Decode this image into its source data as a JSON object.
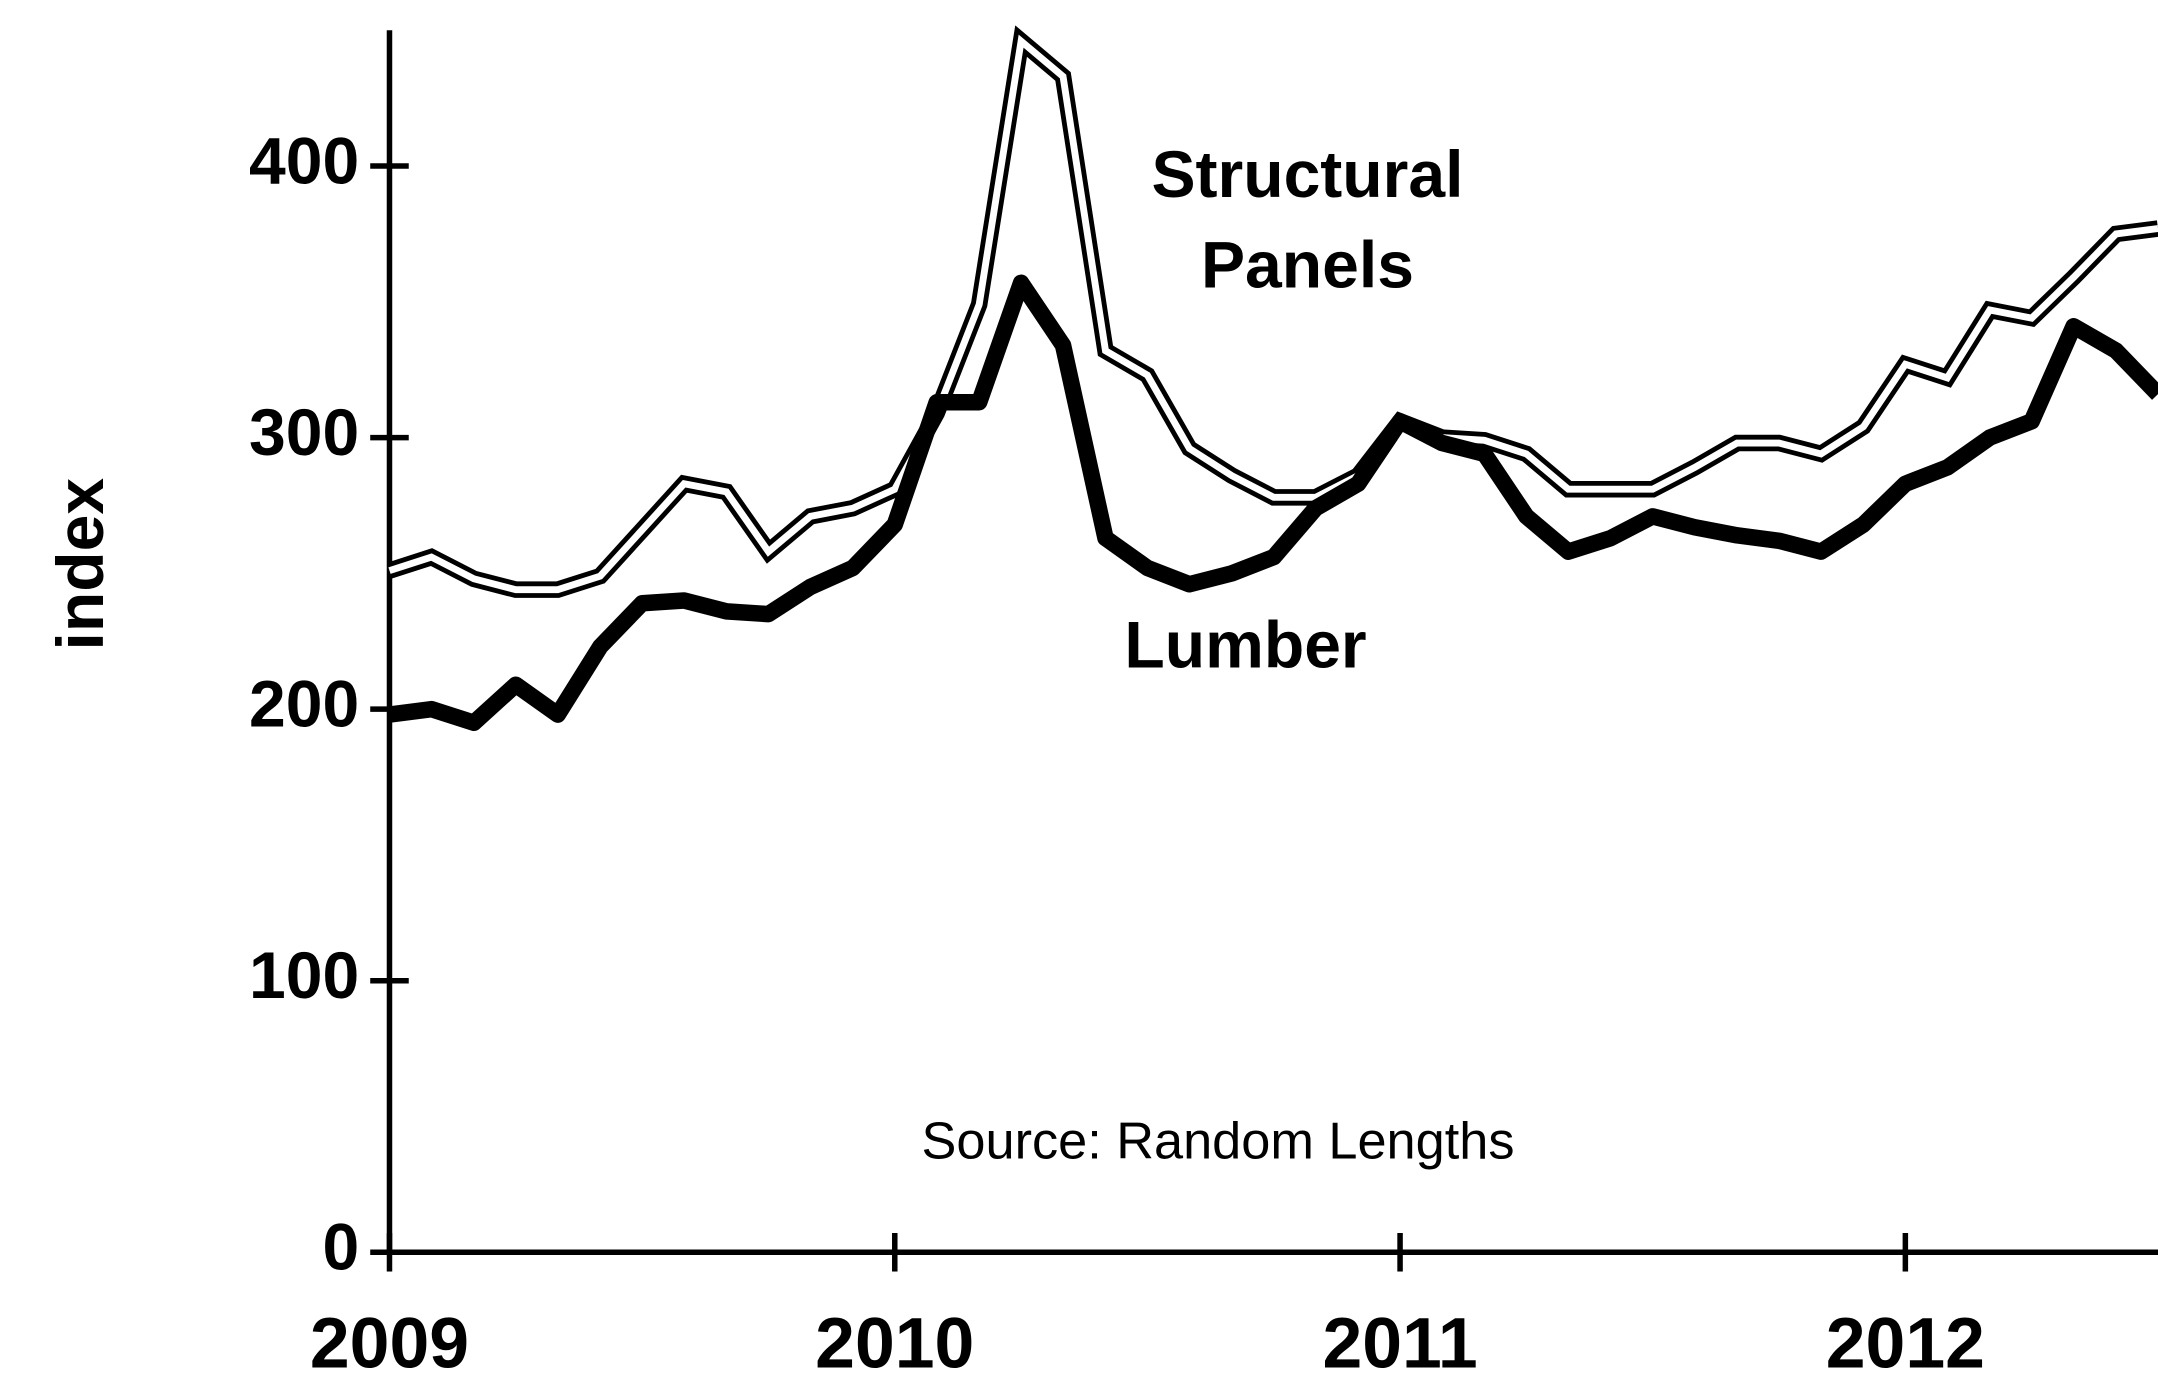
{
  "chart_data": {
    "type": "line",
    "y_label": "index",
    "annotation": "Source: Random Lengths",
    "xlim": [
      2009,
      2012.5
    ],
    "ylim": [
      0,
      450
    ],
    "xticks": [
      2009,
      2010,
      2011,
      2012
    ],
    "yticks": [
      0,
      100,
      200,
      300,
      400
    ],
    "x": [
      2009.0,
      2009.083,
      2009.167,
      2009.25,
      2009.333,
      2009.417,
      2009.5,
      2009.583,
      2009.667,
      2009.75,
      2009.833,
      2009.917,
      2010.0,
      2010.083,
      2010.167,
      2010.25,
      2010.333,
      2010.417,
      2010.5,
      2010.583,
      2010.667,
      2010.75,
      2010.833,
      2010.917,
      2011.0,
      2011.083,
      2011.167,
      2011.25,
      2011.333,
      2011.417,
      2011.5,
      2011.583,
      2011.667,
      2011.75,
      2011.833,
      2011.917,
      2012.0,
      2012.083,
      2012.167,
      2012.25,
      2012.333,
      2012.417,
      2012.5
    ],
    "series": [
      {
        "name": "Structural Panels",
        "color": "#000000",
        "style": "double",
        "values": [
          251,
          256,
          248,
          244,
          244,
          249,
          266,
          283,
          280,
          258,
          271,
          274,
          281,
          309,
          349,
          446,
          433,
          332,
          323,
          296,
          286,
          278,
          278,
          286,
          306,
          300,
          299,
          294,
          281,
          281,
          281,
          289,
          298,
          298,
          294,
          304,
          327,
          322,
          347,
          344,
          359,
          375,
          377
        ]
      },
      {
        "name": "Lumber",
        "color": "#000000",
        "style": "solid",
        "values": [
          198,
          200,
          195,
          209,
          198,
          223,
          239,
          240,
          236,
          235,
          245,
          252,
          268,
          313,
          313,
          357,
          334,
          263,
          252,
          246,
          250,
          256,
          274,
          283,
          306,
          298,
          294,
          271,
          258,
          263,
          271,
          267,
          264,
          262,
          258,
          268,
          283,
          289,
          300,
          306,
          341,
          332,
          316
        ]
      }
    ]
  }
}
